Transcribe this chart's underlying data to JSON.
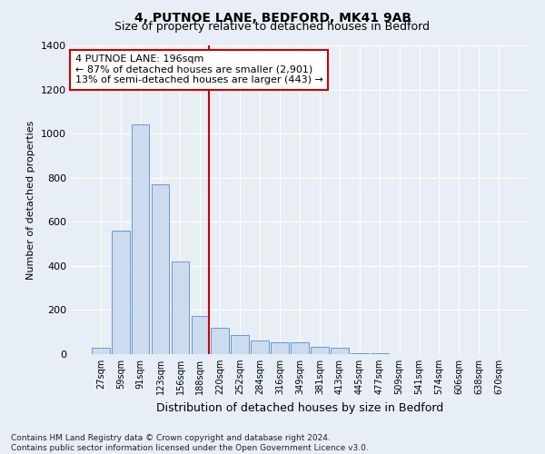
{
  "title1": "4, PUTNOE LANE, BEDFORD, MK41 9AB",
  "title2": "Size of property relative to detached houses in Bedford",
  "xlabel": "Distribution of detached houses by size in Bedford",
  "ylabel": "Number of detached properties",
  "bins": [
    "27sqm",
    "59sqm",
    "91sqm",
    "123sqm",
    "156sqm",
    "188sqm",
    "220sqm",
    "252sqm",
    "284sqm",
    "316sqm",
    "349sqm",
    "381sqm",
    "413sqm",
    "445sqm",
    "477sqm",
    "509sqm",
    "541sqm",
    "574sqm",
    "606sqm",
    "638sqm",
    "670sqm"
  ],
  "values": [
    30,
    560,
    1040,
    770,
    420,
    175,
    120,
    85,
    60,
    55,
    55,
    35,
    30,
    5,
    3,
    2,
    2,
    1,
    1,
    1,
    1
  ],
  "bar_color": "#ccdcee",
  "bar_edge_color": "#6699cc",
  "vline_x": 5.42,
  "vline_color": "#cc0000",
  "annotation_text": "4 PUTNOE LANE: 196sqm\n← 87% of detached houses are smaller (2,901)\n13% of semi-detached houses are larger (443) →",
  "annotation_box_color": "white",
  "annotation_box_edge": "#cc0000",
  "ylim": [
    0,
    1400
  ],
  "yticks": [
    0,
    200,
    400,
    600,
    800,
    1000,
    1200,
    1400
  ],
  "footnote": "Contains HM Land Registry data © Crown copyright and database right 2024.\nContains public sector information licensed under the Open Government Licence v3.0.",
  "bg_color": "#e8eef6",
  "plot_bg_color": "#e8eef6",
  "title_fontsize": 10,
  "subtitle_fontsize": 9
}
